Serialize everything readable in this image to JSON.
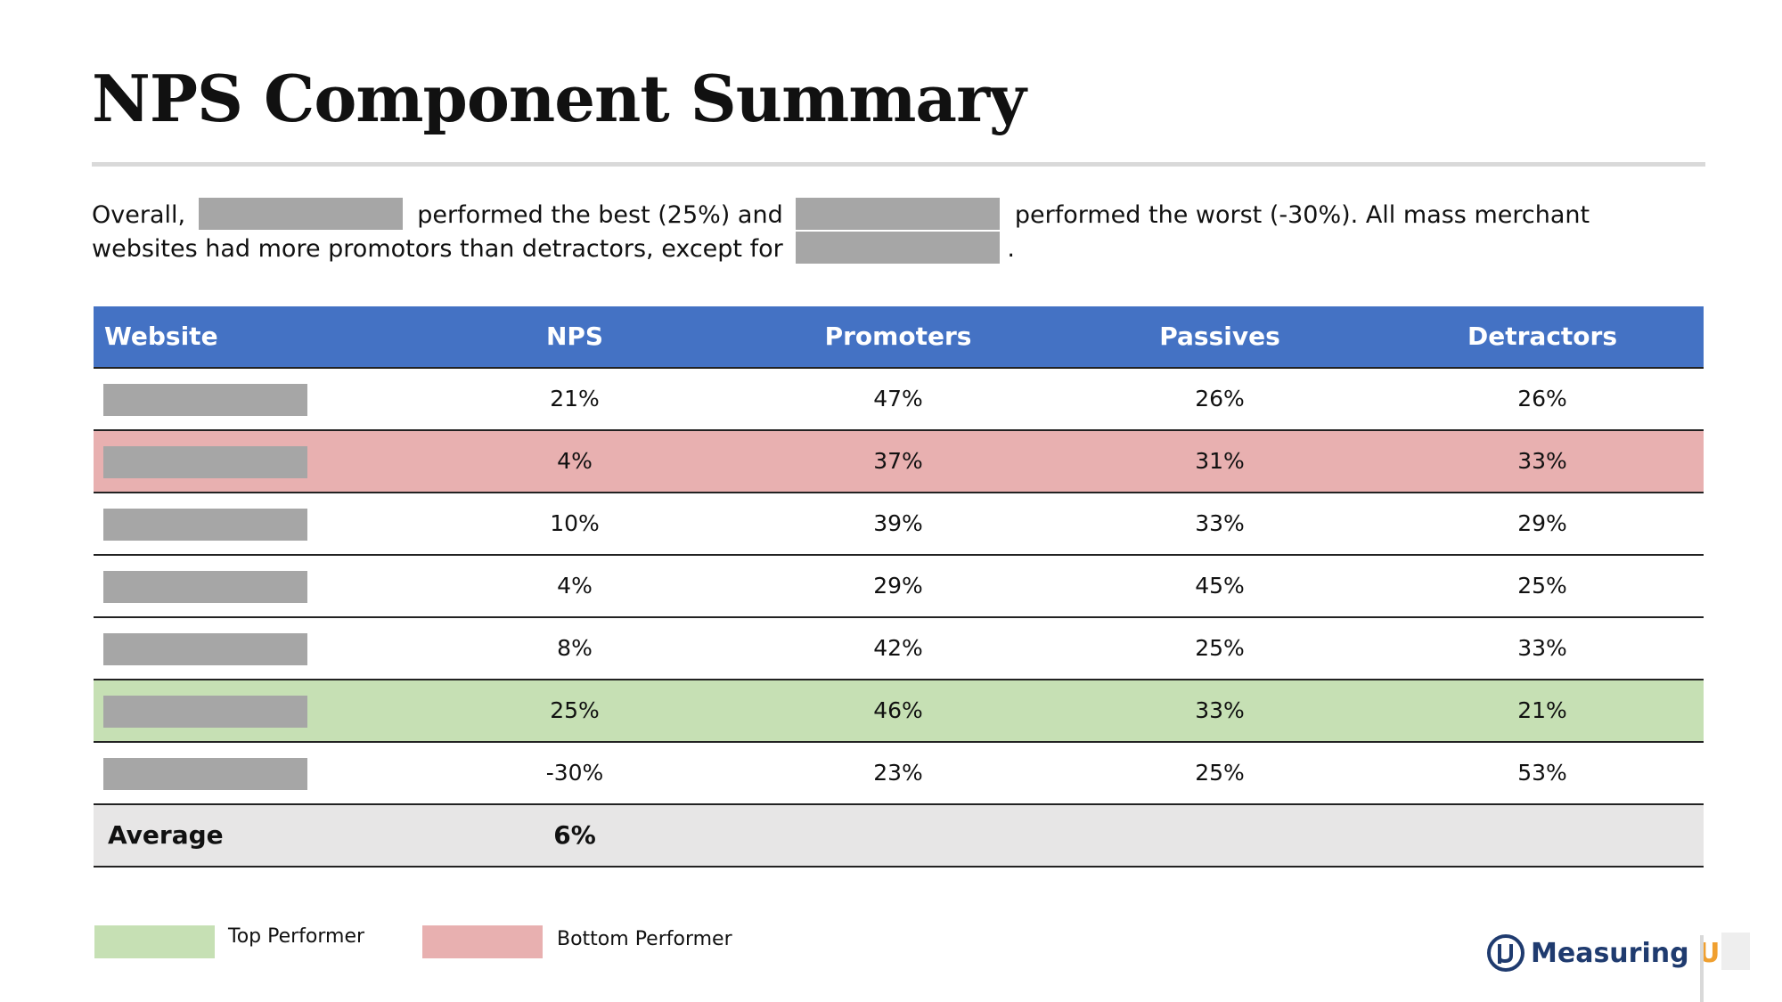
{
  "header": {
    "title": "NPS Component Summary"
  },
  "intro": {
    "parts": [
      "Overall, ",
      " performed the best (25%) and ",
      " performed the worst (-30%). All mass merchant websites had more promotors than detractors, except for ",
      "."
    ]
  },
  "table": {
    "columns": [
      "Website",
      "NPS",
      "Promoters",
      "Passives",
      "Detractors"
    ],
    "rows": [
      {
        "cells": [
          "21%",
          "47%",
          "26%",
          "26%"
        ]
      },
      {
        "cells": [
          "4%",
          "37%",
          "31%",
          "33%"
        ],
        "color": "#e8b0b0"
      },
      {
        "cells": [
          "10%",
          "39%",
          "33%",
          "29%"
        ]
      },
      {
        "cells": [
          "4%",
          "29%",
          "45%",
          "25%"
        ]
      },
      {
        "cells": [
          "8%",
          "42%",
          "25%",
          "33%"
        ]
      },
      {
        "cells": [
          "25%",
          "46%",
          "33%",
          "21%"
        ],
        "color": "#c6e0b4"
      },
      {
        "cells": [
          "-30%",
          "23%",
          "25%",
          "53%"
        ]
      }
    ],
    "average": {
      "label": "Average",
      "nps": "6%"
    }
  },
  "legend": [
    {
      "label": "Top Performer",
      "color": "#c6e0b4"
    },
    {
      "label": "Bottom Performer",
      "color": "#e8b0b0"
    }
  ],
  "logo": {
    "name": "Measuring",
    "suffix": "U"
  }
}
